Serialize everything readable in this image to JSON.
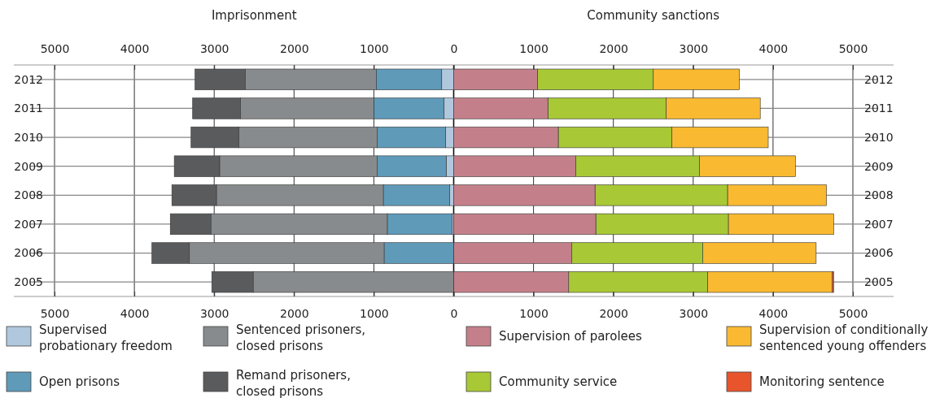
{
  "chart_data": {
    "type": "bar",
    "orientation": "horizontal",
    "stacked": true,
    "annotations": [
      "Imprisonment",
      "Community sanctions"
    ],
    "categories": [
      "2012",
      "2011",
      "2010",
      "2009",
      "2008",
      "2007",
      "2006",
      "2005"
    ],
    "series": [
      {
        "name": "Supervised probationary freedom",
        "color": "#b0c8de",
        "values": [
          -150,
          -120,
          -100,
          -90,
          -50,
          -20,
          0,
          0
        ]
      },
      {
        "name": "Open prisons",
        "color": "#5f9ab9",
        "values": [
          -820,
          -880,
          -860,
          -870,
          -830,
          -810,
          -870,
          0
        ]
      },
      {
        "name": "Sentenced prisoners, closed prisons",
        "color": "#888b8d",
        "values": [
          -1640,
          -1670,
          -1730,
          -1970,
          -2090,
          -2210,
          -2440,
          -2510
        ]
      },
      {
        "name": "Remand prisoners, closed prisons",
        "color": "#5a5b5d",
        "values": [
          -630,
          -600,
          -600,
          -570,
          -560,
          -510,
          -470,
          -520
        ]
      },
      {
        "name": "Supervision of parolees",
        "color": "#c4808a",
        "values": [
          1050,
          1180,
          1310,
          1530,
          1770,
          1780,
          1480,
          1440
        ]
      },
      {
        "name": "Community service",
        "color": "#a8c836",
        "values": [
          1450,
          1480,
          1420,
          1550,
          1660,
          1660,
          1640,
          1740
        ]
      },
      {
        "name": "Supervision of conditionally sentenced young offenders",
        "color": "#f9b931",
        "values": [
          1080,
          1180,
          1210,
          1200,
          1240,
          1320,
          1420,
          1560
        ]
      },
      {
        "name": "Monitoring sentence",
        "color": "#e8552c",
        "values": [
          0,
          0,
          0,
          0,
          0,
          0,
          0,
          20
        ]
      }
    ],
    "xlim": [
      -5000,
      5000
    ],
    "xticks": [
      {
        "value": -5000,
        "label": "5000"
      },
      {
        "value": -4000,
        "label": "4000"
      },
      {
        "value": -3000,
        "label": "3000"
      },
      {
        "value": -2000,
        "label": "2000"
      },
      {
        "value": -1000,
        "label": "1000"
      },
      0,
      1000,
      2000,
      3000,
      4000,
      5000
    ],
    "x2lim": [
      -5000,
      5000
    ],
    "x2ticks": [
      {
        "value": -5000,
        "label": "5000"
      },
      {
        "value": -4000,
        "label": "4000"
      },
      {
        "value": -3000,
        "label": "3000"
      },
      {
        "value": -2000,
        "label": "2000"
      },
      {
        "value": -1000,
        "label": "1000"
      },
      0,
      1000,
      2000,
      3000,
      4000,
      5000
    ],
    "grid": true,
    "legend": "bottom"
  }
}
